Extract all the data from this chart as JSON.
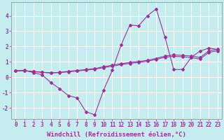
{
  "xlabel": "Windchill (Refroidissement éolien,°C)",
  "background_color": "#c5ecee",
  "grid_color": "#ffffff",
  "line_color": "#993399",
  "x_ticks": [
    0,
    1,
    2,
    3,
    4,
    5,
    6,
    7,
    8,
    9,
    10,
    11,
    12,
    13,
    14,
    15,
    16,
    17,
    18,
    19,
    20,
    21,
    22,
    23
  ],
  "ylim": [
    -2.7,
    4.9
  ],
  "xlim": [
    -0.5,
    23.5
  ],
  "series1_x": [
    0,
    1,
    2,
    3,
    4,
    5,
    6,
    7,
    8,
    9,
    10,
    11,
    12,
    13,
    14,
    15,
    16,
    17,
    18,
    19,
    20,
    21,
    22,
    23
  ],
  "series1_y": [
    0.4,
    0.45,
    0.3,
    0.15,
    -0.35,
    -0.75,
    -1.2,
    -1.35,
    -2.25,
    -2.45,
    -0.85,
    0.45,
    2.1,
    3.4,
    3.35,
    4.0,
    4.45,
    2.6,
    0.5,
    0.5,
    1.3,
    1.7,
    1.9,
    1.8
  ],
  "series2_x": [
    0,
    1,
    2,
    3,
    4,
    5,
    6,
    7,
    8,
    9,
    10,
    11,
    12,
    13,
    14,
    15,
    16,
    17,
    18,
    19,
    20,
    21,
    22,
    23
  ],
  "series2_y": [
    0.42,
    0.42,
    0.37,
    0.32,
    0.28,
    0.32,
    0.38,
    0.44,
    0.5,
    0.56,
    0.68,
    0.78,
    0.88,
    0.96,
    1.02,
    1.1,
    1.22,
    1.38,
    1.45,
    1.42,
    1.38,
    1.28,
    1.72,
    1.82
  ],
  "series3_x": [
    0,
    1,
    2,
    3,
    4,
    5,
    6,
    7,
    8,
    9,
    10,
    11,
    12,
    13,
    14,
    15,
    16,
    17,
    18,
    19,
    20,
    21,
    22,
    23
  ],
  "series3_y": [
    0.42,
    0.42,
    0.37,
    0.32,
    0.28,
    0.3,
    0.35,
    0.4,
    0.46,
    0.52,
    0.62,
    0.72,
    0.82,
    0.9,
    0.96,
    1.04,
    1.16,
    1.3,
    1.36,
    1.33,
    1.28,
    1.18,
    1.62,
    1.72
  ],
  "markersize": 2.0,
  "linewidth": 0.8,
  "tick_fontsize": 5.5,
  "label_fontsize": 6.5,
  "yticks": [
    -2,
    -1,
    0,
    1,
    2,
    3,
    4
  ]
}
